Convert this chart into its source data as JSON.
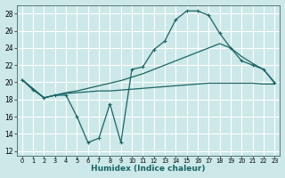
{
  "xlabel": "Humidex (Indice chaleur)",
  "bg_color": "#cce8e8",
  "line_color": "#1a6464",
  "grid_color": "#b8d8d8",
  "xlim": [
    -0.5,
    23.5
  ],
  "ylim": [
    11.5,
    29.0
  ],
  "xticks": [
    0,
    1,
    2,
    3,
    4,
    5,
    6,
    7,
    8,
    9,
    10,
    11,
    12,
    13,
    14,
    15,
    16,
    17,
    18,
    19,
    20,
    21,
    22,
    23
  ],
  "yticks": [
    12,
    14,
    16,
    18,
    20,
    22,
    24,
    26,
    28
  ],
  "line1_x": [
    0,
    1,
    2,
    3,
    4,
    5,
    6,
    7,
    8,
    9,
    10,
    11,
    12,
    13,
    14,
    15,
    16,
    17,
    18,
    19,
    20,
    21,
    22,
    23
  ],
  "line1_y": [
    20.3,
    19.1,
    18.2,
    18.5,
    18.5,
    16.0,
    13.0,
    13.5,
    17.5,
    13.0,
    21.5,
    21.8,
    23.8,
    24.8,
    27.3,
    28.3,
    28.3,
    27.8,
    25.7,
    24.0,
    22.5,
    22.0,
    21.5,
    19.9
  ],
  "line2_x": [
    0,
    2,
    3,
    4,
    5,
    6,
    7,
    8,
    9,
    10,
    11,
    12,
    13,
    14,
    15,
    16,
    17,
    18,
    19,
    20,
    21,
    22,
    23
  ],
  "line2_y": [
    20.3,
    18.2,
    18.5,
    18.8,
    19.0,
    19.3,
    19.6,
    19.9,
    20.2,
    20.6,
    21.0,
    21.5,
    22.0,
    22.5,
    23.0,
    23.5,
    24.0,
    24.5,
    24.0,
    23.0,
    22.2,
    21.5,
    20.0
  ],
  "line3_x": [
    0,
    2,
    3,
    4,
    5,
    6,
    7,
    8,
    9,
    10,
    11,
    12,
    13,
    14,
    15,
    16,
    17,
    18,
    19,
    20,
    21,
    22,
    23
  ],
  "line3_y": [
    20.3,
    18.2,
    18.5,
    18.7,
    18.8,
    18.9,
    19.0,
    19.0,
    19.1,
    19.2,
    19.3,
    19.4,
    19.5,
    19.6,
    19.7,
    19.8,
    19.9,
    19.9,
    19.9,
    19.9,
    19.9,
    19.8,
    19.8
  ]
}
